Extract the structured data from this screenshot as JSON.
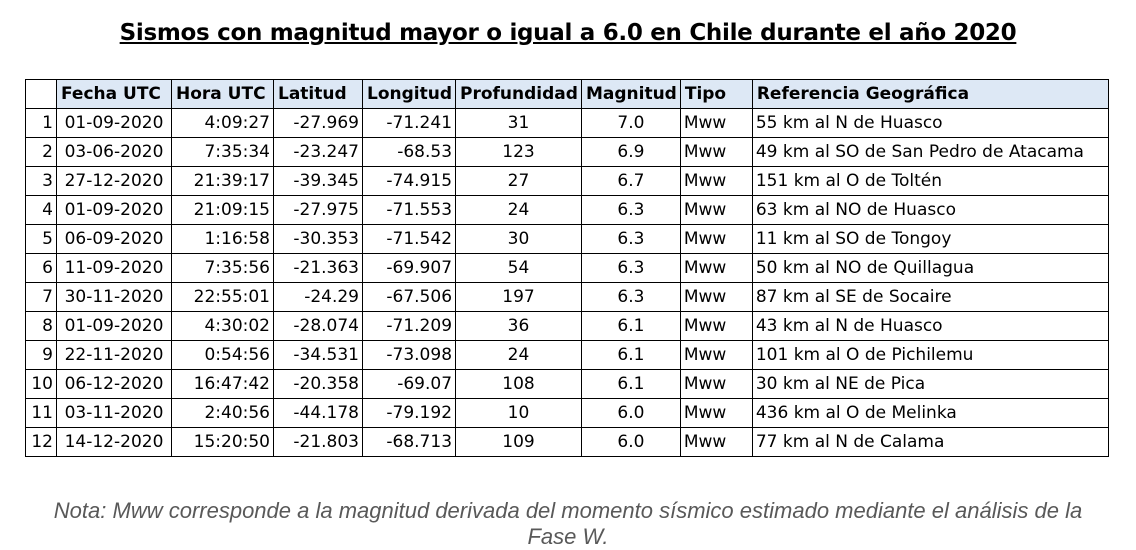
{
  "title": "Sismos con magnitud mayor o igual a 6.0 en Chile durante el año 2020",
  "table": {
    "headers": [
      "",
      "Fecha UTC",
      "Hora UTC",
      "Latitud",
      "Longitud",
      "Profundidad",
      "Magnitud",
      "Tipo",
      "Referencia Geográfica"
    ],
    "rows": [
      [
        "1",
        "01-09-2020",
        "4:09:27",
        "-27.969",
        "-71.241",
        "31",
        "7.0",
        "Mww",
        "55 km al N de Huasco"
      ],
      [
        "2",
        "03-06-2020",
        "7:35:34",
        "-23.247",
        "-68.53",
        "123",
        "6.9",
        "Mww",
        "49 km al SO de San Pedro de Atacama"
      ],
      [
        "3",
        "27-12-2020",
        "21:39:17",
        "-39.345",
        "-74.915",
        "27",
        "6.7",
        "Mww",
        "151 km al O de Toltén"
      ],
      [
        "4",
        "01-09-2020",
        "21:09:15",
        "-27.975",
        "-71.553",
        "24",
        "6.3",
        "Mww",
        "63 km al NO de Huasco"
      ],
      [
        "5",
        "06-09-2020",
        "1:16:58",
        "-30.353",
        "-71.542",
        "30",
        "6.3",
        "Mww",
        "11 km al SO de Tongoy"
      ],
      [
        "6",
        "11-09-2020",
        "7:35:56",
        "-21.363",
        "-69.907",
        "54",
        "6.3",
        "Mww",
        "50 km al NO de Quillagua"
      ],
      [
        "7",
        "30-11-2020",
        "22:55:01",
        "-24.29",
        "-67.506",
        "197",
        "6.3",
        "Mww",
        "87 km al SE de Socaire"
      ],
      [
        "8",
        "01-09-2020",
        "4:30:02",
        "-28.074",
        "-71.209",
        "36",
        "6.1",
        "Mww",
        "43 km al N de Huasco"
      ],
      [
        "9",
        "22-11-2020",
        "0:54:56",
        "-34.531",
        "-73.098",
        "24",
        "6.1",
        "Mww",
        "101 km al O de Pichilemu"
      ],
      [
        "10",
        "06-12-2020",
        "16:47:42",
        "-20.358",
        "-69.07",
        "108",
        "6.1",
        "Mww",
        "30 km al NE de Pica"
      ],
      [
        "11",
        "03-11-2020",
        "2:40:56",
        "-44.178",
        "-79.192",
        "10",
        "6.0",
        "Mww",
        "436 km al O de Melinka"
      ],
      [
        "12",
        "14-12-2020",
        "15:20:50",
        "-21.803",
        "-68.713",
        "109",
        "6.0",
        "Mww",
        "77 km al N de Calama"
      ]
    ]
  },
  "note": "Nota: Mww corresponde a la magnitud derivada del momento sísmico estimado mediante el análisis de la Fase W.",
  "colors": {
    "header_bg": "#dde8f5",
    "note_text": "#595959"
  }
}
